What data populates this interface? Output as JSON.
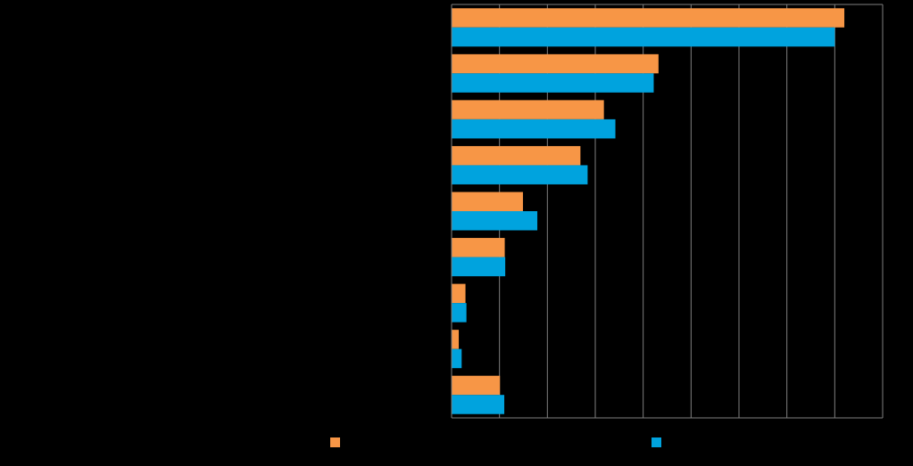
{
  "chart_data": {
    "type": "bar",
    "orientation": "horizontal",
    "title": "",
    "xlabel": "",
    "ylabel": "",
    "categories": [
      "",
      "",
      "",
      "",
      "",
      "",
      "",
      "",
      ""
    ],
    "series": [
      {
        "name": "",
        "color": "#F79646",
        "values": [
          82,
          43.2,
          31.8,
          26.9,
          14.9,
          11.1,
          2.9,
          1.5,
          10.1
        ]
      },
      {
        "name": "",
        "color": "#00A3DE",
        "values": [
          80,
          42.2,
          34.2,
          28.4,
          17.9,
          11.2,
          3.1,
          2.1,
          11.0
        ]
      }
    ],
    "xlim": [
      0,
      90
    ],
    "x_tick_step": 10,
    "grid": true,
    "grid_color": "#7F7F7F",
    "axis_color": "#7F7F7F",
    "background": "#000000",
    "legend_position": "bottom"
  }
}
